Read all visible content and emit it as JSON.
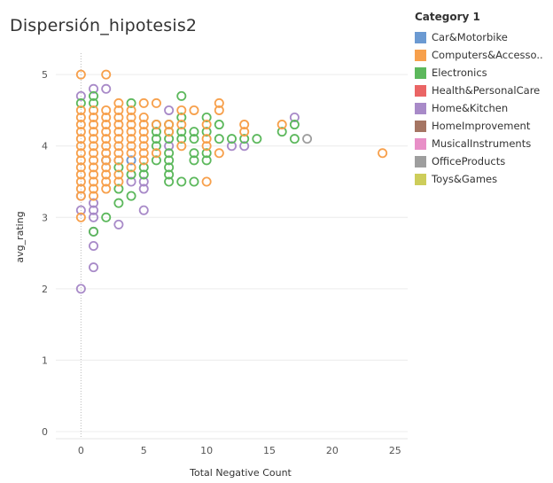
{
  "chart_data": {
    "type": "scatter",
    "title": "Dispersión_hipotesis2",
    "xlabel": "Total Negative Count",
    "ylabel": "avg_rating",
    "xlim": [
      -2,
      26
    ],
    "ylim": [
      -0.1,
      5.3
    ],
    "x_ticks": [
      "0",
      "5",
      "10",
      "15",
      "20",
      "25"
    ],
    "y_ticks": [
      "0",
      "1",
      "2",
      "3",
      "4",
      "5"
    ],
    "grid": true,
    "legend_placement": "right",
    "legend_title": "Category 1",
    "legend": [
      {
        "name": "Car&Motorbike",
        "color": "#6b9ad2"
      },
      {
        "name": "Computers&Accesso..",
        "color": "#f7a04c"
      },
      {
        "name": "Electronics",
        "color": "#5cb85c"
      },
      {
        "name": "Health&PersonalCare",
        "color": "#ea6565"
      },
      {
        "name": "Home&Kitchen",
        "color": "#a88ac8"
      },
      {
        "name": "HomeImprovement",
        "color": "#a57563"
      },
      {
        "name": "MusicalInstruments",
        "color": "#e88fc7"
      },
      {
        "name": "OfficeProducts",
        "color": "#9e9e9e"
      },
      {
        "name": "Toys&Games",
        "color": "#cdcd5a"
      }
    ],
    "series": [
      {
        "name": "Home&Kitchen",
        "color": "#a88ac8",
        "points": [
          [
            0,
            2.0
          ],
          [
            0,
            3.1
          ],
          [
            0,
            3.3
          ],
          [
            0,
            4.7
          ],
          [
            1,
            2.3
          ],
          [
            1,
            2.6
          ],
          [
            1,
            2.8
          ],
          [
            1,
            3.0
          ],
          [
            1,
            3.1
          ],
          [
            1,
            3.2
          ],
          [
            1,
            4.8
          ],
          [
            2,
            4.8
          ],
          [
            3,
            2.9
          ],
          [
            4,
            3.5
          ],
          [
            4,
            3.8
          ],
          [
            5,
            3.1
          ],
          [
            5,
            3.4
          ],
          [
            5,
            3.5
          ],
          [
            7,
            4.0
          ],
          [
            7,
            4.5
          ],
          [
            12,
            4.0
          ],
          [
            13,
            4.0
          ],
          [
            17,
            4.4
          ]
        ]
      },
      {
        "name": "Electronics",
        "color": "#5cb85c",
        "points": [
          [
            0,
            4.6
          ],
          [
            1,
            2.8
          ],
          [
            1,
            4.6
          ],
          [
            1,
            4.7
          ],
          [
            2,
            3.0
          ],
          [
            3,
            3.2
          ],
          [
            3,
            3.4
          ],
          [
            3,
            3.7
          ],
          [
            4,
            3.3
          ],
          [
            4,
            3.6
          ],
          [
            4,
            4.6
          ],
          [
            5,
            3.6
          ],
          [
            5,
            3.7
          ],
          [
            6,
            3.8
          ],
          [
            6,
            4.0
          ],
          [
            6,
            4.1
          ],
          [
            6,
            4.2
          ],
          [
            6,
            4.3
          ],
          [
            7,
            3.5
          ],
          [
            7,
            3.6
          ],
          [
            7,
            3.7
          ],
          [
            7,
            3.8
          ],
          [
            7,
            3.9
          ],
          [
            7,
            4.1
          ],
          [
            7,
            4.2
          ],
          [
            7,
            4.3
          ],
          [
            8,
            3.5
          ],
          [
            8,
            4.1
          ],
          [
            8,
            4.2
          ],
          [
            8,
            4.4
          ],
          [
            8,
            4.7
          ],
          [
            9,
            3.5
          ],
          [
            9,
            3.8
          ],
          [
            9,
            3.9
          ],
          [
            9,
            4.1
          ],
          [
            9,
            4.2
          ],
          [
            10,
            3.8
          ],
          [
            10,
            3.9
          ],
          [
            10,
            4.2
          ],
          [
            10,
            4.4
          ],
          [
            11,
            4.1
          ],
          [
            11,
            4.3
          ],
          [
            12,
            4.1
          ],
          [
            13,
            4.1
          ],
          [
            14,
            4.1
          ],
          [
            16,
            4.2
          ],
          [
            17,
            4.1
          ],
          [
            17,
            4.3
          ]
        ]
      },
      {
        "name": "OfficeProducts",
        "color": "#9e9e9e",
        "points": [
          [
            2,
            3.8
          ],
          [
            3,
            3.8
          ],
          [
            18,
            4.1
          ]
        ]
      },
      {
        "name": "Car&Motorbike",
        "color": "#6b9ad2",
        "points": [
          [
            2,
            3.8
          ],
          [
            4,
            3.8
          ]
        ]
      },
      {
        "name": "Computers&Accesso..",
        "color": "#f7a04c",
        "points": [
          [
            0,
            3.0
          ],
          [
            0,
            3.3
          ],
          [
            0,
            3.4
          ],
          [
            0,
            3.5
          ],
          [
            0,
            3.6
          ],
          [
            0,
            3.7
          ],
          [
            0,
            3.8
          ],
          [
            0,
            3.9
          ],
          [
            0,
            4.0
          ],
          [
            0,
            4.1
          ],
          [
            0,
            4.2
          ],
          [
            0,
            4.3
          ],
          [
            0,
            4.4
          ],
          [
            0,
            4.5
          ],
          [
            0,
            5.0
          ],
          [
            1,
            3.3
          ],
          [
            1,
            3.4
          ],
          [
            1,
            3.5
          ],
          [
            1,
            3.6
          ],
          [
            1,
            3.7
          ],
          [
            1,
            3.8
          ],
          [
            1,
            3.9
          ],
          [
            1,
            4.0
          ],
          [
            1,
            4.1
          ],
          [
            1,
            4.2
          ],
          [
            1,
            4.3
          ],
          [
            1,
            4.4
          ],
          [
            1,
            4.5
          ],
          [
            2,
            3.4
          ],
          [
            2,
            3.5
          ],
          [
            2,
            3.6
          ],
          [
            2,
            3.7
          ],
          [
            2,
            3.8
          ],
          [
            2,
            3.9
          ],
          [
            2,
            4.0
          ],
          [
            2,
            4.1
          ],
          [
            2,
            4.2
          ],
          [
            2,
            4.3
          ],
          [
            2,
            4.4
          ],
          [
            2,
            4.5
          ],
          [
            2,
            5.0
          ],
          [
            3,
            3.5
          ],
          [
            3,
            3.6
          ],
          [
            3,
            3.8
          ],
          [
            3,
            3.9
          ],
          [
            3,
            4.0
          ],
          [
            3,
            4.1
          ],
          [
            3,
            4.2
          ],
          [
            3,
            4.3
          ],
          [
            3,
            4.4
          ],
          [
            3,
            4.5
          ],
          [
            3,
            4.6
          ],
          [
            4,
            3.7
          ],
          [
            4,
            3.9
          ],
          [
            4,
            4.0
          ],
          [
            4,
            4.1
          ],
          [
            4,
            4.2
          ],
          [
            4,
            4.3
          ],
          [
            4,
            4.4
          ],
          [
            4,
            4.5
          ],
          [
            5,
            3.8
          ],
          [
            5,
            3.9
          ],
          [
            5,
            4.0
          ],
          [
            5,
            4.1
          ],
          [
            5,
            4.2
          ],
          [
            5,
            4.3
          ],
          [
            5,
            4.4
          ],
          [
            5,
            4.6
          ],
          [
            6,
            3.9
          ],
          [
            6,
            4.3
          ],
          [
            6,
            4.6
          ],
          [
            7,
            4.2
          ],
          [
            7,
            4.3
          ],
          [
            8,
            4.0
          ],
          [
            8,
            4.3
          ],
          [
            8,
            4.5
          ],
          [
            9,
            4.5
          ],
          [
            10,
            3.5
          ],
          [
            10,
            4.0
          ],
          [
            10,
            4.1
          ],
          [
            10,
            4.3
          ],
          [
            11,
            3.9
          ],
          [
            11,
            4.5
          ],
          [
            11,
            4.6
          ],
          [
            13,
            4.2
          ],
          [
            13,
            4.3
          ],
          [
            16,
            4.3
          ],
          [
            24,
            3.9
          ]
        ]
      }
    ]
  }
}
